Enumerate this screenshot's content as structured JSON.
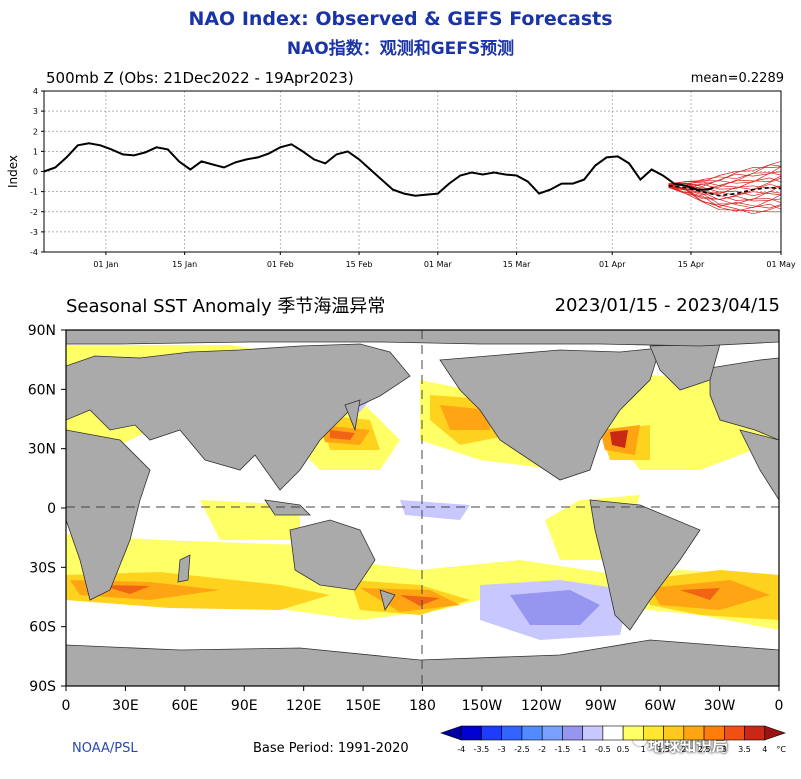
{
  "titles": {
    "english": "NAO Index: Observed & GEFS Forecasts",
    "chinese": "NAO指数：观测和GEFS预测"
  },
  "nao_panel": {
    "subtitle": "500mb Z (Obs: 21Dec2022 - 19Apr2023)",
    "mean_label": "mean=0.2289"
  },
  "sst_panel": {
    "title": "Seasonal SST Anomaly 季节海温异常",
    "date_range": "2023/01/15 - 2023/04/15",
    "credit": "NOAA/PSL",
    "base_period": "Base Period: 1991-2020"
  },
  "watermark": "地球知识局",
  "colors": {
    "title": "#1a33a6",
    "observed_line": "#000000",
    "ensemble": "#d9231f",
    "land": "#aaaaaa",
    "warm_1": "#ffff66",
    "warm_2": "#ffd21e",
    "warm_3": "#ffa514",
    "warm_4": "#f06414",
    "warm_5": "#c82814",
    "cool_1": "#c8c8ff",
    "cool_2": "#9696f0"
  },
  "chart_data": [
    {
      "type": "line",
      "title": "500mb Z (Obs: 21Dec2022 - 19Apr2023)",
      "ylabel": "Index",
      "xlabel": "",
      "ylim": [
        -4,
        4
      ],
      "yticks": [
        -4,
        -3,
        -2,
        -1,
        0,
        1,
        2,
        3,
        4
      ],
      "xlim_days": [
        0,
        131
      ],
      "xtick_labels": [
        {
          "label": "01 Jan",
          "day": 11
        },
        {
          "label": "15 Jan",
          "day": 25
        },
        {
          "label": "01 Feb",
          "day": 42
        },
        {
          "label": "15 Feb",
          "day": 56
        },
        {
          "label": "01 Mar",
          "day": 70
        },
        {
          "label": "15 Mar",
          "day": 84
        },
        {
          "label": "01 Apr",
          "day": 101
        },
        {
          "label": "15 Apr",
          "day": 115
        },
        {
          "label": "01 May",
          "day": 131
        }
      ],
      "grid": true,
      "series": [
        {
          "name": "Observed NAO",
          "color": "#000000",
          "days": [
            0,
            2,
            4,
            6,
            8,
            10,
            12,
            14,
            16,
            18,
            20,
            22,
            24,
            26,
            28,
            30,
            32,
            34,
            36,
            38,
            40,
            42,
            44,
            46,
            48,
            50,
            52,
            54,
            56,
            58,
            60,
            62,
            64,
            66,
            68,
            70,
            72,
            74,
            76,
            78,
            80,
            82,
            84,
            86,
            88,
            90,
            92,
            94,
            96,
            98,
            100,
            102,
            104,
            106,
            108,
            110,
            112,
            114,
            116,
            118,
            119
          ],
          "values": [
            0.0,
            0.2,
            0.7,
            1.3,
            1.4,
            1.3,
            1.1,
            0.85,
            0.8,
            0.95,
            1.2,
            1.1,
            0.5,
            0.1,
            0.5,
            0.35,
            0.2,
            0.45,
            0.6,
            0.7,
            0.9,
            1.2,
            1.35,
            1.0,
            0.6,
            0.4,
            0.85,
            1.0,
            0.6,
            0.1,
            -0.4,
            -0.9,
            -1.1,
            -1.2,
            -1.15,
            -1.1,
            -0.6,
            -0.2,
            -0.05,
            -0.15,
            -0.05,
            -0.15,
            -0.2,
            -0.5,
            -1.1,
            -0.9,
            -0.6,
            -0.6,
            -0.4,
            0.3,
            0.7,
            0.75,
            0.4,
            -0.4,
            0.1,
            -0.2,
            -0.6,
            -0.7,
            -0.9,
            -0.9,
            -0.8
          ]
        },
        {
          "name": "GEFS ensemble mean forecast",
          "color": "#000000",
          "style": "dashed",
          "days": [
            111,
            114,
            117,
            120,
            123,
            126,
            129,
            131
          ],
          "values": [
            -0.7,
            -0.8,
            -1.0,
            -1.2,
            -1.1,
            -0.9,
            -0.8,
            -0.85
          ]
        },
        {
          "name": "GEFS ensemble members",
          "color": "#d9231f",
          "spread_days": [
            111,
            114,
            117,
            120,
            123,
            126,
            129,
            131
          ],
          "spread_upper": [
            -0.6,
            -0.5,
            -0.4,
            -0.2,
            0.0,
            0.2,
            0.4,
            0.5
          ],
          "spread_lower": [
            -0.8,
            -1.1,
            -1.5,
            -1.9,
            -2.0,
            -2.1,
            -2.0,
            -2.0
          ]
        }
      ]
    },
    {
      "type": "heatmap",
      "title": "Seasonal SST Anomaly 季节海温异常",
      "x_axis": "longitude",
      "y_axis": "latitude",
      "xlim": [
        0,
        360
      ],
      "ylim": [
        -90,
        90
      ],
      "xtick_labels": [
        "0",
        "30E",
        "60E",
        "90E",
        "120E",
        "150E",
        "180",
        "150W",
        "120W",
        "90W",
        "60W",
        "30W",
        "0"
      ],
      "ytick_labels": [
        "90N",
        "60N",
        "30N",
        "0",
        "30S",
        "60S",
        "90S"
      ],
      "colorbar": {
        "ticks": [
          "-4",
          "-3.5",
          "-3",
          "-2.5",
          "-2",
          "-1.5",
          "-1",
          "-0.5",
          "0.5",
          "1",
          "1.5",
          "2",
          "2.5",
          "3",
          "3.5",
          "4"
        ],
        "unit": "°C",
        "colors": [
          "#0000a0",
          "#0000d2",
          "#1e3cff",
          "#3264ff",
          "#508cff",
          "#78a0ff",
          "#9696f0",
          "#c8c8ff",
          "#ffffff",
          "#ffff66",
          "#ffe632",
          "#ffc81e",
          "#ffa514",
          "#ff7d0a",
          "#f05014",
          "#c82814",
          "#961414"
        ]
      },
      "features": [
        "warm anomalies in the Kuroshio extension and NW Pacific",
        "warm anomalies along the US east coast and Gulf Stream",
        "broad warm band in the southern mid-latitudes",
        "cool anomaly in the South Pacific near 50S-60S, 150W-110W",
        "weak cool anomaly in the central equatorial Pacific"
      ]
    }
  ]
}
